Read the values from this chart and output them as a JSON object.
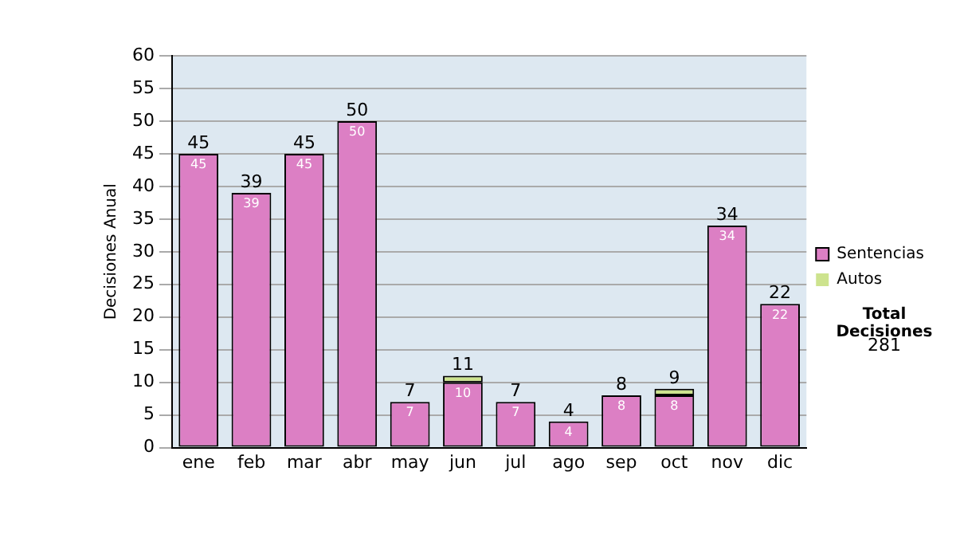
{
  "chart_data": {
    "type": "bar",
    "stacked": true,
    "ylabel": "Decisiones Anual",
    "categories": [
      "ene",
      "feb",
      "mar",
      "abr",
      "may",
      "jun",
      "jul",
      "ago",
      "sep",
      "oct",
      "nov",
      "dic"
    ],
    "series": [
      {
        "name": "Sentencias",
        "color": "#dc7fc4",
        "values": [
          45,
          39,
          45,
          50,
          7,
          10,
          7,
          4,
          8,
          8,
          34,
          22
        ],
        "value_labels": [
          "45",
          "39",
          "45",
          "50",
          "7",
          "10",
          "7",
          "4",
          "8",
          "8",
          "34",
          "22"
        ]
      },
      {
        "name": "Autos",
        "color": "#cde38e",
        "values": [
          0,
          0,
          0,
          0,
          0,
          1,
          0,
          0,
          0,
          1,
          0,
          0
        ]
      }
    ],
    "totals": [
      "45",
      "39",
      "45",
      "50",
      "7",
      "11",
      "7",
      "4",
      "8",
      "9",
      "34",
      "22"
    ],
    "ylim": [
      0,
      60
    ],
    "yticks": [
      0,
      5,
      10,
      15,
      20,
      25,
      30,
      35,
      40,
      45,
      50,
      55,
      60
    ],
    "grid": "y",
    "legend": "right",
    "annotations": [
      "Total Decisiones",
      "281"
    ]
  }
}
